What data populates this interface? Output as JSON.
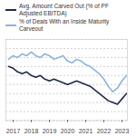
{
  "chart_data": {
    "type": "line",
    "x": [
      2016.75,
      2017,
      2017.25,
      2017.5,
      2017.75,
      2018,
      2018.25,
      2018.5,
      2018.75,
      2019,
      2019.25,
      2019.5,
      2019.75,
      2020,
      2020.25,
      2020.5,
      2020.75,
      2021,
      2021.25,
      2021.5,
      2021.75,
      2022,
      2022.25,
      2022.5,
      2022.75,
      2023,
      2023.25
    ],
    "series": [
      {
        "name": "Avg. Amount Carved Out (% of PF Adjusted EBITDA)",
        "color": "#1f2a4a",
        "values": [
          0.3,
          0.29,
          0.27,
          0.26,
          0.27,
          0.25,
          0.24,
          0.25,
          0.23,
          0.22,
          0.23,
          0.22,
          0.21,
          0.2,
          0.21,
          0.22,
          0.21,
          0.2,
          0.19,
          0.17,
          0.15,
          0.13,
          0.11,
          0.1,
          0.09,
          0.12,
          0.15
        ]
      },
      {
        "name": "% of Deals With an Inside Maturity Carveout",
        "color": "#8cb4d9",
        "values": [
          0.34,
          0.36,
          0.35,
          0.37,
          0.36,
          0.38,
          0.36,
          0.35,
          0.37,
          0.36,
          0.34,
          0.35,
          0.36,
          0.33,
          0.32,
          0.34,
          0.33,
          0.31,
          0.3,
          0.28,
          0.26,
          0.23,
          0.19,
          0.16,
          0.18,
          0.22,
          0.25
        ]
      }
    ],
    "xlim": [
      2016.6,
      2023.3
    ],
    "xticks": [
      2017,
      2018,
      2019,
      2020,
      2021,
      2022,
      2023
    ],
    "ylim": [
      0,
      0.45
    ],
    "yticks": [
      0,
      0.05,
      0.1,
      0.15,
      0.2,
      0.25,
      0.3,
      0.35,
      0.4,
      0.45
    ],
    "grid": true,
    "tick_labels": "x"
  }
}
